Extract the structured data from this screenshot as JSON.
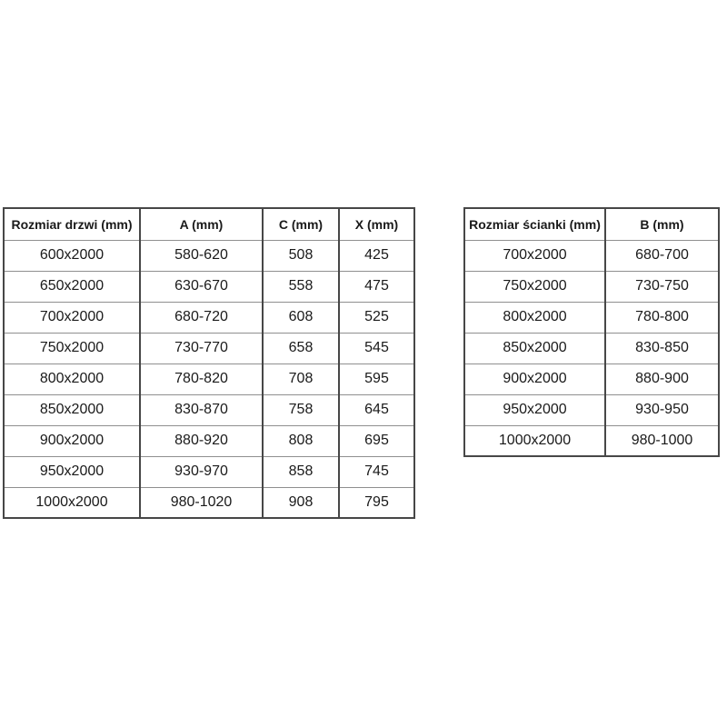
{
  "page": {
    "background_color": "#ffffff"
  },
  "colors": {
    "border_dark": "#474747",
    "border_light": "#8f8f8f",
    "text": "#1a1a1a"
  },
  "tables": {
    "door": {
      "title": "Rozmiar drzwi (mm)",
      "headers": [
        "Rozmiar drzwi (mm)",
        "A (mm)",
        "C (mm)",
        "X (mm)"
      ],
      "rows": [
        [
          "600x2000",
          "580-620",
          "508",
          "425"
        ],
        [
          "650x2000",
          "630-670",
          "558",
          "475"
        ],
        [
          "700x2000",
          "680-720",
          "608",
          "525"
        ],
        [
          "750x2000",
          "730-770",
          "658",
          "545"
        ],
        [
          "800x2000",
          "780-820",
          "708",
          "595"
        ],
        [
          "850x2000",
          "830-870",
          "758",
          "645"
        ],
        [
          "900x2000",
          "880-920",
          "808",
          "695"
        ],
        [
          "950x2000",
          "930-970",
          "858",
          "745"
        ],
        [
          "1000x2000",
          "980-1020",
          "908",
          "795"
        ]
      ]
    },
    "wall": {
      "title": "Rozmiar ścianki (mm)",
      "headers": [
        "Rozmiar ścianki (mm)",
        "B (mm)"
      ],
      "rows": [
        [
          "700x2000",
          "680-700"
        ],
        [
          "750x2000",
          "730-750"
        ],
        [
          "800x2000",
          "780-800"
        ],
        [
          "850x2000",
          "830-850"
        ],
        [
          "900x2000",
          "880-900"
        ],
        [
          "950x2000",
          "930-950"
        ],
        [
          "1000x2000",
          "980-1000"
        ]
      ]
    }
  }
}
